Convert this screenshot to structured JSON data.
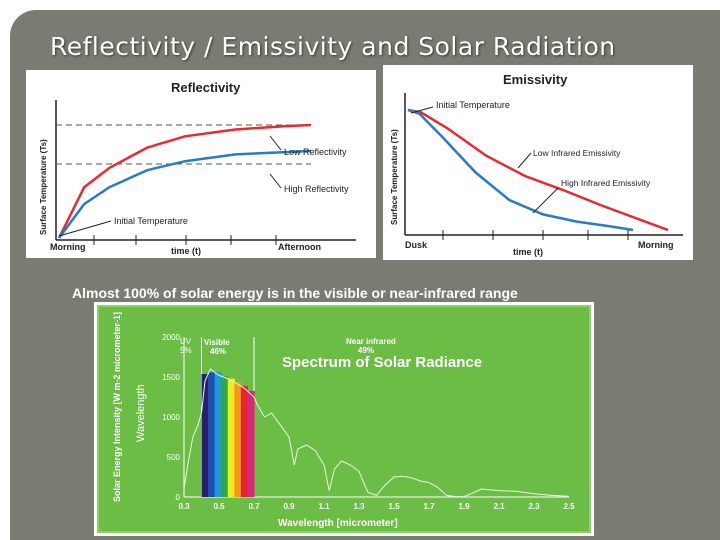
{
  "slide": {
    "title": "Reflectivity / Emissivity and Solar Radiation",
    "subtitle": "Almost 100% of solar energy is in the visible or near-infrared range"
  },
  "colors": {
    "background": "#7a7b72",
    "red_curve": "#e8292f",
    "blue_curve": "#2b7bc4",
    "spectrum_green": "#6cbd45"
  },
  "chart_data": [
    {
      "type": "line",
      "title": "Reflectivity",
      "xlabel": "time (t)",
      "ylabel": "Surface Temperature (Ts)",
      "x_ticks": [
        "Morning",
        "Afternoon"
      ],
      "annotations": [
        "Initial Temperature",
        "Low Reflectivity",
        "High Reflectivity"
      ],
      "series": [
        {
          "name": "Low Reflectivity",
          "color": "#e8292f",
          "x": [
            0,
            0.1,
            0.2,
            0.35,
            0.5,
            0.7,
            0.9,
            1.0
          ],
          "y": [
            0,
            0.45,
            0.62,
            0.8,
            0.9,
            0.96,
            0.99,
            1.0
          ]
        },
        {
          "name": "High Reflectivity",
          "color": "#2b7bc4",
          "x": [
            0,
            0.1,
            0.2,
            0.35,
            0.5,
            0.7,
            0.9,
            1.0
          ],
          "y": [
            0,
            0.3,
            0.45,
            0.6,
            0.68,
            0.74,
            0.76,
            0.77
          ]
        }
      ]
    },
    {
      "type": "line",
      "title": "Emissivity",
      "xlabel": "time (t)",
      "ylabel": "Surface Temperature (Ts)",
      "x_ticks": [
        "Dusk",
        "Morning"
      ],
      "annotations": [
        "Initial Temperature",
        "Low Infrared Emissivity",
        "High Infrared Emissivity"
      ],
      "series": [
        {
          "name": "Low Infrared Emissivity",
          "color": "#e8292f",
          "x": [
            0,
            0.05,
            0.15,
            0.3,
            0.45,
            0.6,
            0.75,
            0.9,
            1.0
          ],
          "y": [
            1.0,
            0.98,
            0.85,
            0.62,
            0.45,
            0.33,
            0.2,
            0.08,
            0.0
          ]
        },
        {
          "name": "High Infrared Emissivity",
          "color": "#2b7bc4",
          "x": [
            0,
            0.05,
            0.15,
            0.3,
            0.45,
            0.6,
            0.75,
            0.9,
            1.0
          ],
          "y": [
            1.0,
            0.97,
            0.78,
            0.48,
            0.25,
            0.13,
            0.07,
            0.03,
            0.0
          ]
        }
      ]
    },
    {
      "type": "area",
      "title": "Spectrum of Solar Radiance",
      "xlabel": "Wavelength [micrometer]",
      "ylabel": "Solar Energy Intensity [W m-2 micrometer-1]",
      "ylabel_inner": "Wavelength",
      "x_ticks": [
        "0.3",
        "0.5",
        "0.7",
        "0.9",
        "1.1",
        "1.3",
        "1.5",
        "1.7",
        "1.9",
        "2.1",
        "2.3",
        "2.5"
      ],
      "y_ticks": [
        "0",
        "500",
        "1000",
        "1500",
        "2000"
      ],
      "xlim": [
        0.3,
        2.5
      ],
      "ylim": [
        0,
        2000
      ],
      "regions": [
        {
          "label": "UV",
          "pct": "5%"
        },
        {
          "label": "Visible",
          "pct": "46%"
        },
        {
          "label": "Near infrared",
          "pct": "49%"
        }
      ],
      "x": [
        0.3,
        0.32,
        0.35,
        0.38,
        0.4,
        0.42,
        0.45,
        0.48,
        0.5,
        0.55,
        0.6,
        0.65,
        0.7,
        0.72,
        0.76,
        0.8,
        0.85,
        0.9,
        0.93,
        0.95,
        1.0,
        1.05,
        1.1,
        1.13,
        1.16,
        1.2,
        1.25,
        1.3,
        1.35,
        1.4,
        1.45,
        1.5,
        1.55,
        1.6,
        1.65,
        1.7,
        1.75,
        1.8,
        1.85,
        1.9,
        1.95,
        2.0,
        2.1,
        2.2,
        2.3,
        2.4,
        2.5
      ],
      "y": [
        100,
        380,
        750,
        900,
        1050,
        1450,
        1600,
        1550,
        1520,
        1480,
        1420,
        1350,
        1250,
        1150,
        1000,
        1050,
        900,
        750,
        400,
        600,
        650,
        580,
        400,
        80,
        350,
        450,
        400,
        320,
        60,
        20,
        150,
        250,
        260,
        240,
        200,
        180,
        120,
        20,
        5,
        5,
        50,
        100,
        80,
        70,
        40,
        20,
        10
      ]
    }
  ]
}
